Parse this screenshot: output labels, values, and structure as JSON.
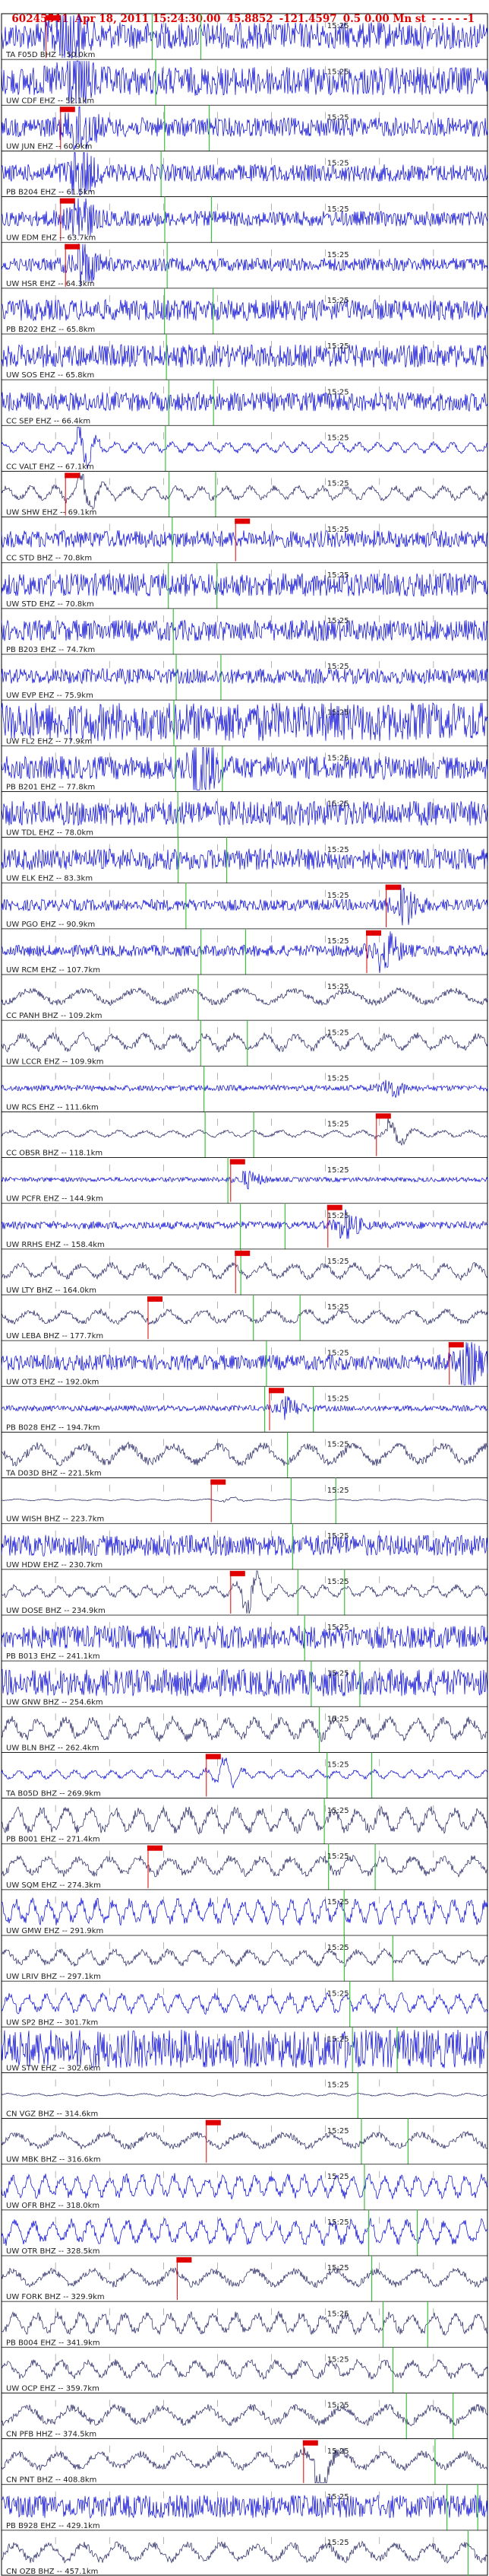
{
  "header": {
    "event_id": "60245511",
    "datetime": "Apr 18, 2011 15:24:30.00",
    "latitude": "45.8852",
    "longitude": "-121.4597",
    "depth_magnitude": "0.5 0.00 Mn st",
    "suffix": "- - - - -1"
  },
  "chart_data": {
    "type": "line",
    "title": "60245511 Apr 18, 2011 15:24:30.00 45.8852 -121.4597 0.5 0.00 Mn st - - - - -1",
    "description_note": "Stacked seismogram record section; one trace per station, ordered by epicentral distance",
    "time_tick_label": "15:25",
    "colors": {
      "trace": "#0000d0",
      "trace_dark": "#202060",
      "pick": "#e00000",
      "marker": "#40c040",
      "grid": "#808080",
      "label": "#202020"
    },
    "traces": [
      {
        "net": "TA",
        "sta": "F05D",
        "chan": "BHZ",
        "dist_km": 50.0,
        "label": "TA F05D BHZ -- 50.0km",
        "amp": 0.7,
        "freq": 0.9,
        "burst": 0.12,
        "pick": true
      },
      {
        "net": "UW",
        "sta": "CDF",
        "chan": "EHZ",
        "dist_km": 52.1,
        "label": "UW CDF EHZ -- 52.1km",
        "amp": 0.75,
        "freq": 1.0,
        "burst": 0.14,
        "pick": false
      },
      {
        "net": "UW",
        "sta": "JUN",
        "chan": "EHZ",
        "dist_km": 60.9,
        "label": "UW JUN EHZ -- 60.9km",
        "amp": 0.5,
        "freq": 1.0,
        "burst": 0.15,
        "pick": true
      },
      {
        "net": "PB",
        "sta": "B204",
        "chan": "EHZ",
        "dist_km": 61.5,
        "label": "PB B204 EHZ -- 61.5km",
        "amp": 0.45,
        "freq": 1.0,
        "burst": 0.15,
        "pick": false
      },
      {
        "net": "UW",
        "sta": "EDM",
        "chan": "EHZ",
        "dist_km": 63.7,
        "label": "UW EDM EHZ -- 63.7km",
        "amp": 0.4,
        "freq": 1.0,
        "burst": 0.15,
        "pick": true
      },
      {
        "net": "UW",
        "sta": "HSR",
        "chan": "EHZ",
        "dist_km": 64.3,
        "label": "UW HSR EHZ -- 64.3km",
        "amp": 0.35,
        "freq": 1.0,
        "burst": 0.16,
        "pick": true
      },
      {
        "net": "PB",
        "sta": "B202",
        "chan": "EHZ",
        "dist_km": 65.8,
        "label": "PB B202 EHZ -- 65.8km",
        "amp": 0.55,
        "freq": 1.0,
        "burst": 0.0,
        "pick": false
      },
      {
        "net": "UW",
        "sta": "SOS",
        "chan": "EHZ",
        "dist_km": 65.8,
        "label": "UW SOS EHZ -- 65.8km",
        "amp": 0.6,
        "freq": 1.0,
        "burst": 0.0,
        "pick": false
      },
      {
        "net": "CC",
        "sta": "SEP",
        "chan": "EHZ",
        "dist_km": 66.4,
        "label": "CC SEP EHZ -- 66.4km",
        "amp": 0.5,
        "freq": 1.0,
        "burst": 0.0,
        "pick": false
      },
      {
        "net": "CC",
        "sta": "VALT",
        "chan": "EHZ",
        "dist_km": 67.1,
        "label": "CC VALT EHZ -- 67.1km",
        "amp": 0.3,
        "freq": 0.5,
        "burst": 0.16,
        "pick": false
      },
      {
        "net": "UW",
        "sta": "SHW",
        "chan": "EHZ",
        "dist_km": 69.1,
        "label": "UW SHW EHZ -- 69.1km",
        "amp": 0.4,
        "freq": 0.35,
        "burst": 0.16,
        "pick": true
      },
      {
        "net": "CC",
        "sta": "STD",
        "chan": "BHZ",
        "dist_km": 70.8,
        "label": "CC STD BHZ -- 70.8km",
        "amp": 0.45,
        "freq": 1.0,
        "burst": 0.0,
        "pick": true
      },
      {
        "net": "UW",
        "sta": "STD",
        "chan": "EHZ",
        "dist_km": 70.8,
        "label": "UW STD EHZ -- 70.8km",
        "amp": 0.6,
        "freq": 1.0,
        "burst": 0.0,
        "pick": false
      },
      {
        "net": "PB",
        "sta": "B203",
        "chan": "EHZ",
        "dist_km": 74.7,
        "label": "PB B203 EHZ -- 74.7km",
        "amp": 0.55,
        "freq": 1.0,
        "burst": 0.0,
        "pick": false
      },
      {
        "net": "UW",
        "sta": "EVP",
        "chan": "EHZ",
        "dist_km": 75.9,
        "label": "UW EVP EHZ -- 75.9km",
        "amp": 0.4,
        "freq": 1.0,
        "burst": 0.0,
        "pick": false
      },
      {
        "net": "UW",
        "sta": "FL2",
        "chan": "EHZ",
        "dist_km": 77.9,
        "label": "UW FL2 EHZ -- 77.9km",
        "amp": 1.0,
        "freq": 1.0,
        "burst": 0.0,
        "pick": false
      },
      {
        "net": "PB",
        "sta": "B201",
        "chan": "EHZ",
        "dist_km": 77.8,
        "label": "PB B201 EHZ -- 77.8km",
        "amp": 0.6,
        "freq": 1.0,
        "burst": 0.4,
        "pick": false
      },
      {
        "net": "UW",
        "sta": "TDL",
        "chan": "EHZ",
        "dist_km": 78.0,
        "label": "UW TDL EHZ -- 78.0km",
        "amp": 0.65,
        "freq": 1.0,
        "burst": 0.0,
        "pick": false
      },
      {
        "net": "UW",
        "sta": "ELK",
        "chan": "EHZ",
        "dist_km": 83.3,
        "label": "UW ELK EHZ -- 83.3km",
        "amp": 0.55,
        "freq": 1.0,
        "burst": 0.0,
        "pick": false
      },
      {
        "net": "UW",
        "sta": "PGO",
        "chan": "EHZ",
        "dist_km": 90.9,
        "label": "UW PGO EHZ -- 90.9km",
        "amp": 0.3,
        "freq": 1.0,
        "burst": 0.82,
        "pick": true
      },
      {
        "net": "UW",
        "sta": "RCM",
        "chan": "EHZ",
        "dist_km": 107.7,
        "label": "UW RCM EHZ -- 107.7km",
        "amp": 0.3,
        "freq": 1.0,
        "burst": 0.78,
        "pick": true
      },
      {
        "net": "CC",
        "sta": "PANH",
        "chan": "BHZ",
        "dist_km": 109.2,
        "label": "CC PANH BHZ -- 109.2km",
        "amp": 0.45,
        "freq": 0.08,
        "burst": 0.0,
        "pick": false
      },
      {
        "net": "UW",
        "sta": "LCCR",
        "chan": "EHZ",
        "dist_km": 109.9,
        "label": "UW LCCR EHZ -- 109.9km",
        "amp": 0.5,
        "freq": 0.25,
        "burst": 0.0,
        "pick": false
      },
      {
        "net": "UW",
        "sta": "RCS",
        "chan": "EHZ",
        "dist_km": 111.6,
        "label": "UW RCS EHZ -- 111.6km",
        "amp": 0.15,
        "freq": 1.0,
        "burst": 0.79,
        "pick": false
      },
      {
        "net": "CC",
        "sta": "OBSR",
        "chan": "BHZ",
        "dist_km": 118.1,
        "label": "CC OBSR BHZ -- 118.1km",
        "amp": 0.2,
        "freq": 0.3,
        "burst": 0.8,
        "pick": true
      },
      {
        "net": "UW",
        "sta": "PCFR",
        "chan": "EHZ",
        "dist_km": 144.9,
        "label": "UW PCFR EHZ -- 144.9km",
        "amp": 0.12,
        "freq": 1.0,
        "burst": 0.5,
        "pick": true
      },
      {
        "net": "UW",
        "sta": "RRHS",
        "chan": "EHZ",
        "dist_km": 158.4,
        "label": "UW RRHS EHZ -- 158.4km",
        "amp": 0.2,
        "freq": 1.0,
        "burst": 0.7,
        "pick": true
      },
      {
        "net": "UW",
        "sta": "LTY",
        "chan": "BHZ",
        "dist_km": 164.0,
        "label": "UW LTY BHZ -- 164.0km",
        "amp": 0.45,
        "freq": 0.25,
        "burst": 0.0,
        "pick": true
      },
      {
        "net": "UW",
        "sta": "LEBA",
        "chan": "BHZ",
        "dist_km": 177.7,
        "label": "UW LEBA BHZ -- 177.7km",
        "amp": 0.4,
        "freq": 0.2,
        "burst": 0.0,
        "pick": true
      },
      {
        "net": "UW",
        "sta": "OT3",
        "chan": "EHZ",
        "dist_km": 192.0,
        "label": "UW OT3 EHZ -- 192.0km",
        "amp": 0.4,
        "freq": 1.0,
        "burst": 0.95,
        "pick": true
      },
      {
        "net": "PB",
        "sta": "B028",
        "chan": "EHZ",
        "dist_km": 194.7,
        "label": "PB B028 EHZ -- 194.7km",
        "amp": 0.15,
        "freq": 1.0,
        "burst": 0.58,
        "pick": true
      },
      {
        "net": "TA",
        "sta": "D03D",
        "chan": "BHZ",
        "dist_km": 221.5,
        "label": "TA D03D BHZ -- 221.5km",
        "amp": 0.6,
        "freq": 0.12,
        "burst": 0.0,
        "pick": false
      },
      {
        "net": "UW",
        "sta": "WISH",
        "chan": "BHZ",
        "dist_km": 223.7,
        "label": "UW WISH BHZ -- 223.7km",
        "amp": 0.05,
        "freq": 0.3,
        "burst": 0.46,
        "pick": true
      },
      {
        "net": "UW",
        "sta": "HDW",
        "chan": "EHZ",
        "dist_km": 230.7,
        "label": "UW HDW EHZ -- 230.7km",
        "amp": 0.55,
        "freq": 1.0,
        "burst": 0.0,
        "pick": false
      },
      {
        "net": "UW",
        "sta": "DOSE",
        "chan": "BHZ",
        "dist_km": 234.9,
        "label": "UW DOSE BHZ -- 234.9km",
        "amp": 0.35,
        "freq": 0.4,
        "burst": 0.5,
        "pick": true
      },
      {
        "net": "PB",
        "sta": "B013",
        "chan": "EHZ",
        "dist_km": 241.1,
        "label": "PB B013 EHZ -- 241.1km",
        "amp": 0.6,
        "freq": 1.0,
        "burst": 0.0,
        "pick": false
      },
      {
        "net": "UW",
        "sta": "GNW",
        "chan": "BHZ",
        "dist_km": 254.6,
        "label": "UW GNW BHZ -- 254.6km",
        "amp": 0.7,
        "freq": 0.9,
        "burst": 0.0,
        "pick": false
      },
      {
        "net": "UW",
        "sta": "BLN",
        "chan": "BHZ",
        "dist_km": 262.4,
        "label": "UW BLN BHZ -- 262.4km",
        "amp": 0.65,
        "freq": 0.3,
        "burst": 0.0,
        "pick": false
      },
      {
        "net": "TA",
        "sta": "B05D",
        "chan": "BHZ",
        "dist_km": 269.9,
        "label": "TA B05D BHZ -- 269.9km",
        "amp": 0.25,
        "freq": 0.5,
        "burst": 0.45,
        "pick": true
      },
      {
        "net": "PB",
        "sta": "B001",
        "chan": "EHZ",
        "dist_km": 271.4,
        "label": "PB B001 EHZ -- 271.4km",
        "amp": 0.7,
        "freq": 0.35,
        "burst": 0.0,
        "pick": false
      },
      {
        "net": "UW",
        "sta": "SQM",
        "chan": "EHZ",
        "dist_km": 274.3,
        "label": "UW SQM EHZ -- 274.3km",
        "amp": 0.55,
        "freq": 0.25,
        "burst": 0.0,
        "pick": true
      },
      {
        "net": "UW",
        "sta": "GMW",
        "chan": "EHZ",
        "dist_km": 291.9,
        "label": "UW GMW EHZ -- 291.9km",
        "amp": 0.7,
        "freq": 0.6,
        "burst": 0.0,
        "pick": false
      },
      {
        "net": "UW",
        "sta": "LRIV",
        "chan": "BHZ",
        "dist_km": 297.1,
        "label": "UW LRIV BHZ -- 297.1km",
        "amp": 0.45,
        "freq": 0.3,
        "burst": 0.0,
        "pick": false
      },
      {
        "net": "UW",
        "sta": "SP2",
        "chan": "BHZ",
        "dist_km": 301.7,
        "label": "UW SP2 BHZ -- 301.7km",
        "amp": 0.55,
        "freq": 0.5,
        "burst": 0.0,
        "pick": false
      },
      {
        "net": "UW",
        "sta": "STW",
        "chan": "EHZ",
        "dist_km": 302.6,
        "label": "UW STW EHZ -- 302.6km",
        "amp": 1.0,
        "freq": 1.0,
        "burst": 0.0,
        "pick": false
      },
      {
        "net": "CN",
        "sta": "VGZ",
        "chan": "BHZ",
        "dist_km": 314.6,
        "label": "CN VGZ BHZ -- 314.6km",
        "amp": 0.08,
        "freq": 0.3,
        "burst": 0.0,
        "pick": false
      },
      {
        "net": "UW",
        "sta": "MBK",
        "chan": "BHZ",
        "dist_km": 316.6,
        "label": "UW MBK BHZ -- 316.6km",
        "amp": 0.45,
        "freq": 0.12,
        "burst": 0.0,
        "pick": true
      },
      {
        "net": "UW",
        "sta": "OFR",
        "chan": "BHZ",
        "dist_km": 318.0,
        "label": "UW OFR BHZ -- 318.0km",
        "amp": 0.65,
        "freq": 0.6,
        "burst": 0.0,
        "pick": false
      },
      {
        "net": "UW",
        "sta": "OTR",
        "chan": "BHZ",
        "dist_km": 328.5,
        "label": "UW OTR BHZ -- 328.5km",
        "amp": 0.7,
        "freq": 0.5,
        "burst": 0.0,
        "pick": false
      },
      {
        "net": "UW",
        "sta": "FORK",
        "chan": "BHZ",
        "dist_km": 329.9,
        "label": "UW FORK BHZ -- 329.9km",
        "amp": 0.5,
        "freq": 0.15,
        "burst": 0.0,
        "pick": true
      },
      {
        "net": "PB",
        "sta": "B004",
        "chan": "EHZ",
        "dist_km": 341.9,
        "label": "PB B004 EHZ -- 341.9km",
        "amp": 0.6,
        "freq": 0.4,
        "burst": 0.0,
        "pick": false
      },
      {
        "net": "UW",
        "sta": "OCP",
        "chan": "EHZ",
        "dist_km": 359.7,
        "label": "UW OCP EHZ -- 359.7km",
        "amp": 0.5,
        "freq": 0.3,
        "burst": 0.0,
        "pick": false
      },
      {
        "net": "CN",
        "sta": "PFB",
        "chan": "HHZ",
        "dist_km": 374.5,
        "label": "CN PFB HHZ -- 374.5km",
        "amp": 0.55,
        "freq": 0.12,
        "burst": 0.0,
        "pick": false
      },
      {
        "net": "CN",
        "sta": "PNT",
        "chan": "BHZ",
        "dist_km": 408.8,
        "label": "CN PNT BHZ -- 408.8km",
        "amp": 0.5,
        "freq": 0.15,
        "burst": 0.65,
        "pick": true
      },
      {
        "net": "PB",
        "sta": "B928",
        "chan": "EHZ",
        "dist_km": 429.1,
        "label": "PB B928 EHZ -- 429.1km",
        "amp": 0.6,
        "freq": 1.0,
        "burst": 0.0,
        "pick": false
      },
      {
        "net": "CN",
        "sta": "OZB",
        "chan": "BHZ",
        "dist_km": 457.1,
        "label": "CN OZB BHZ -- 457.1km",
        "amp": 0.55,
        "freq": 0.2,
        "burst": 0.0,
        "pick": false
      }
    ]
  }
}
